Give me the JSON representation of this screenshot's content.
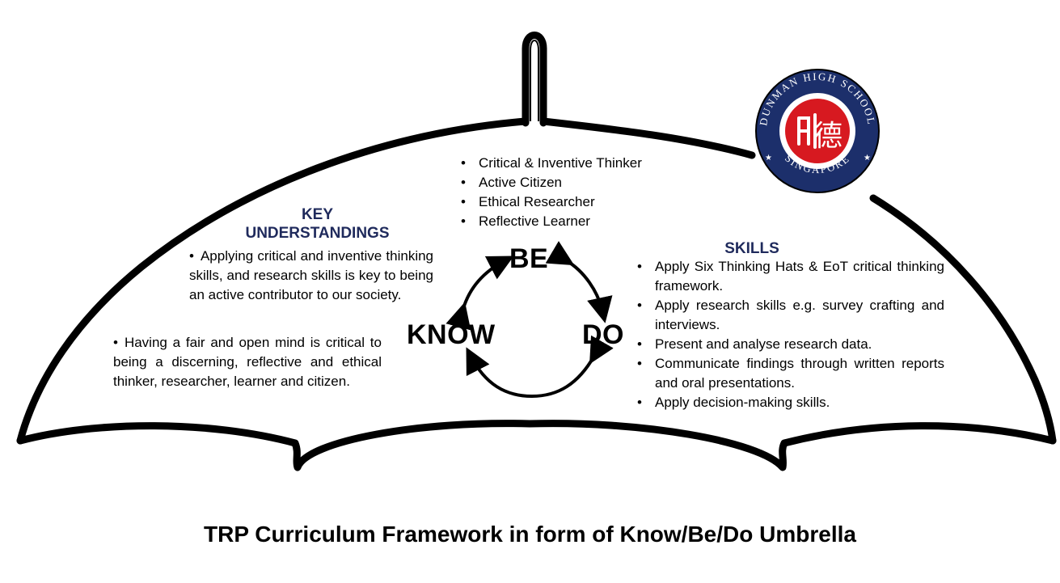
{
  "caption": "TRP Curriculum Framework in form of Know/Be/Do Umbrella",
  "colors": {
    "heading_blue": "#1f2a5c",
    "logo_navy": "#1c2f6b",
    "logo_red": "#d71920",
    "outline": "#000000"
  },
  "be_list": [
    "Critical & Inventive Thinker",
    "Active Citizen",
    "Ethical Researcher",
    "Reflective Learner"
  ],
  "key_understandings": {
    "heading_line1": "KEY",
    "heading_line2": "UNDERSTANDINGS",
    "points": [
      "Applying critical and inventive thinking skills, and research skills is key to being an active contributor to our society.",
      "Having a fair and open mind is critical to being a discerning, reflective and ethical thinker, researcher, learner and citizen."
    ]
  },
  "skills": {
    "heading": "SKILLS",
    "points": [
      "Apply Six Thinking Hats & EoT critical thinking framework.",
      "Apply research skills e.g. survey crafting and interviews.",
      "Present and analyse research data.",
      "Communicate findings through written reports and oral presentations.",
      "Apply decision-making skills."
    ]
  },
  "cycle": {
    "be": "BE",
    "know": "KNOW",
    "do": "DO"
  },
  "logo": {
    "top_text": "DUNMAN HIGH SCHOOL",
    "bottom_text": "SINGAPORE",
    "center_glyphs": "德"
  }
}
